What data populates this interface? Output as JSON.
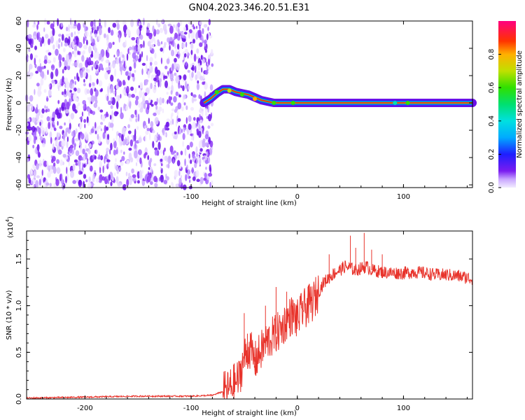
{
  "title": "GN04.2023.346.20.51.E31",
  "chart_data": [
    {
      "type": "heatmap",
      "xlabel": "Height of straight line (km)",
      "ylabel": "Frequency (Hz)",
      "xlim": [
        -255,
        165
      ],
      "ylim": [
        -62,
        60
      ],
      "x_ticks": [
        -200,
        -100,
        0,
        100
      ],
      "y_ticks": [
        60,
        40,
        20,
        0,
        -20,
        -40,
        -60
      ],
      "noise_region_x": [
        -255,
        -80
      ],
      "signal_track": {
        "x": [
          -88,
          -82,
          -76,
          -70,
          -64,
          -58,
          -52,
          -46,
          -40,
          -34,
          -28,
          -22,
          -16,
          -10,
          -4,
          0,
          20,
          40,
          60,
          80,
          100,
          120,
          140,
          165
        ],
        "y": [
          0,
          3,
          7,
          10,
          10,
          8,
          7,
          6,
          4,
          2,
          1,
          0,
          0,
          0,
          0,
          0,
          0,
          0,
          0,
          0,
          0,
          0,
          0,
          0
        ]
      },
      "colorbar": {
        "label": "Normalized spectral amplitude",
        "range": [
          0,
          1
        ],
        "ticks": [
          "0.0",
          "0.2",
          "0.4",
          "0.6",
          "0.8"
        ],
        "tick_values": [
          0.0,
          0.2,
          0.4,
          0.6,
          0.8
        ]
      },
      "grid": false
    },
    {
      "type": "line",
      "xlabel": "Height of straight line (km)",
      "ylabel": "SNR (10 * v/v)",
      "multiplier_label": "(x10",
      "multiplier_exp": "4",
      "multiplier_close": ")",
      "xlim": [
        -255,
        165
      ],
      "ylim": [
        0,
        1.8
      ],
      "x_ticks": [
        -200,
        -100,
        0,
        100
      ],
      "y_ticks": [
        0.0,
        0.5,
        1.0,
        1.5
      ],
      "y_tick_labels": [
        "0.0",
        "0.5",
        "1.0",
        "1.5"
      ],
      "series": [
        {
          "color": "#e8332b",
          "x": [
            -255,
            -200,
            -150,
            -100,
            -80,
            -65,
            -55,
            -50,
            -45,
            -40,
            -35,
            -30,
            -25,
            -20,
            -15,
            -10,
            -5,
            0,
            5,
            10,
            15,
            20,
            25,
            30,
            35,
            40,
            45,
            50,
            55,
            60,
            65,
            70,
            80,
            90,
            100,
            110,
            120,
            130,
            140,
            150,
            160,
            165
          ],
          "y": [
            0.01,
            0.02,
            0.03,
            0.03,
            0.04,
            0.1,
            0.22,
            0.45,
            0.55,
            0.4,
            0.5,
            0.6,
            0.65,
            0.7,
            0.75,
            0.85,
            0.9,
            0.85,
            0.95,
            1.0,
            1.05,
            1.15,
            1.25,
            1.3,
            1.35,
            1.38,
            1.42,
            1.4,
            1.38,
            1.4,
            1.42,
            1.38,
            1.36,
            1.35,
            1.35,
            1.36,
            1.35,
            1.33,
            1.33,
            1.32,
            1.3,
            1.28
          ],
          "spikes": [
            [
              -50,
              0.92
            ],
            [
              -47,
              0.7
            ],
            [
              -40,
              0.45
            ],
            [
              -30,
              1.0
            ],
            [
              -20,
              1.2
            ],
            [
              -10,
              1.15
            ],
            [
              -5,
              1.0
            ],
            [
              5,
              1.05
            ],
            [
              10,
              1.2
            ],
            [
              30,
              1.55
            ],
            [
              50,
              1.75
            ],
            [
              55,
              1.62
            ],
            [
              63,
              1.78
            ],
            [
              70,
              1.6
            ],
            [
              80,
              1.55
            ]
          ]
        }
      ],
      "grid": false
    }
  ]
}
